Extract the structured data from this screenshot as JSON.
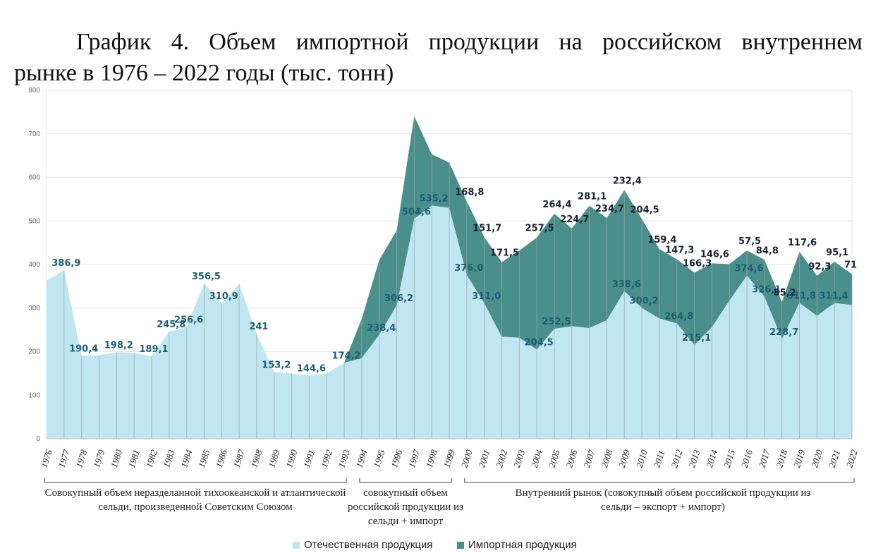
{
  "title_line1": "График 4. Объем импортной продукции на российском внутреннем",
  "title_line2": "рынке в 1976 – 2022 годы (тыс. тонн)",
  "colors": {
    "domestic": "#bfe6f1",
    "import": "#4a8f8b",
    "domestic_label": "#1d5f72",
    "import_label": "#1a2233",
    "grid": "#e4e4e4",
    "axis_text": "#666666"
  },
  "legend": {
    "domestic": "Отечественная продукция",
    "import": "Импортная продукция"
  },
  "period_labels": {
    "p1_line1": "Совокупный объем неразделанной тихоокеанской и атлантической",
    "p1_line2": "сельди, произведенной Советским Союзом",
    "p2_line1": "совокупный объем",
    "p2_line2": "российской  продукции из",
    "p2_line3": "сельди + импорт",
    "p3_line1": "Внутренний рынок (совокупный объем российской  продукции из",
    "p3_line2": "сельди – экспорт + импорт)"
  },
  "chart_data": {
    "type": "area",
    "stacked": true,
    "ylim": [
      0,
      800
    ],
    "yticks": [
      0,
      100,
      200,
      300,
      400,
      500,
      600,
      700,
      800
    ],
    "x": [
      "1976",
      "1977",
      "1978",
      "1979",
      "1980",
      "1981",
      "1982",
      "1983",
      "1984",
      "1985",
      "1986",
      "1987",
      "1988",
      "1989",
      "1990",
      "1991",
      "1992",
      "1993",
      "1994",
      "1995",
      "1996",
      "1997",
      "1998",
      "1999",
      "2000",
      "2001",
      "2002",
      "2003",
      "2004",
      "2005",
      "2006",
      "2007",
      "2008",
      "2009",
      "2010",
      "2011",
      "2012",
      "2013",
      "2014",
      "2015",
      "2016",
      "2017",
      "2018",
      "2019",
      "2020",
      "2021",
      "2022"
    ],
    "series": [
      {
        "name": "Отечественная продукция",
        "values": [
          363,
          386.9,
          190.4,
          192,
          198.2,
          197,
          189.1,
          245.8,
          256.6,
          356.5,
          310.9,
          355,
          241,
          153.2,
          150,
          144.6,
          150,
          174.2,
          185,
          238.4,
          306.2,
          504.6,
          535.2,
          530,
          376.0,
          311.0,
          234,
          232,
          204.5,
          252.5,
          258,
          254,
          272,
          338.6,
          300.2,
          276,
          264.8,
          215.1,
          256,
          317,
          374.6,
          326.1,
          228.7,
          311.8,
          282,
          311.4,
          307
        ],
        "labels": [
          "",
          "386,9",
          "190,4",
          "",
          "198,2",
          "",
          "189,1",
          "245,8",
          "256,6",
          "356,5",
          "310,9",
          "",
          "241",
          "153,2",
          "",
          "144,6",
          "",
          "174,2",
          "",
          "238,4",
          "306,2",
          "504,6",
          "535,2",
          "",
          "376,0",
          "311,0",
          "",
          "",
          "204,5",
          "252,5",
          "",
          "",
          "",
          "338,6",
          "300,2",
          "",
          "264,8",
          "215,1",
          "",
          "",
          "374,6",
          "326,1",
          "228,7",
          "311,8",
          "",
          "311,4",
          ""
        ]
      },
      {
        "name": "Импортная продукция",
        "values": [
          0,
          0,
          0,
          0,
          0,
          0,
          0,
          0,
          0,
          0,
          0,
          0,
          0,
          0,
          0,
          0,
          0,
          0,
          90,
          172,
          172,
          236,
          118,
          104,
          168.8,
          151.7,
          171.5,
          200,
          257.5,
          264.4,
          224.7,
          281.1,
          234.7,
          232.4,
          204.5,
          159.4,
          147.3,
          166.3,
          146.6,
          84,
          57.5,
          84.8,
          85.2,
          117.6,
          92.3,
          95.1,
          71
        ],
        "labels": [
          "",
          "",
          "",
          "",
          "",
          "",
          "",
          "",
          "",
          "",
          "",
          "",
          "",
          "",
          "",
          "",
          "",
          "",
          "",
          "",
          "",
          "",
          "",
          "",
          "168,8",
          "151,7",
          "171,5",
          "",
          "257,5",
          "264,4",
          "224,7",
          "281,1",
          "234,7",
          "232,4",
          "204,5",
          "159,4",
          "147,3",
          "166,3",
          "146,6",
          "",
          "57,5",
          "84,8",
          "85,2",
          "117,6",
          "92,3",
          "95,1",
          "71"
        ]
      }
    ]
  }
}
